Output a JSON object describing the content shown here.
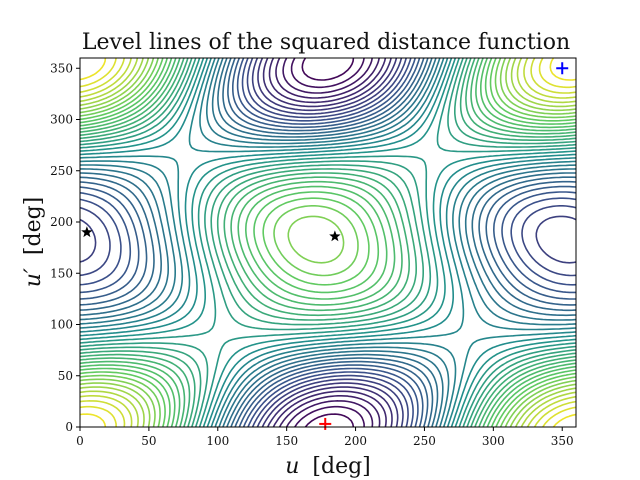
{
  "chart_data": {
    "type": "contour",
    "title": "Level lines of the squared distance function",
    "xlabel": {
      "symbol": "u",
      "unit": "[deg]"
    },
    "ylabel": {
      "symbol": "u′",
      "unit": "[deg]"
    },
    "xlim": [
      0,
      360
    ],
    "ylim": [
      0,
      360
    ],
    "xticks": [
      0,
      50,
      100,
      150,
      200,
      250,
      300,
      350
    ],
    "yticks": [
      0,
      50,
      100,
      150,
      200,
      250,
      300,
      350
    ],
    "grid": false,
    "colormap": [
      "#440154",
      "#3b528b",
      "#21908c",
      "#5dc963",
      "#fde725"
    ],
    "contour_levels": 40,
    "maxima": [
      {
        "x": 178,
        "y": 3,
        "color": "#ff0000",
        "marker": "plus"
      }
    ],
    "minima": [
      {
        "x": 350,
        "y": 350,
        "color": "#0000ff",
        "marker": "plus"
      }
    ],
    "saddles": [
      {
        "x": 5,
        "y": 190,
        "color": "#000000",
        "marker": "star"
      },
      {
        "x": 185,
        "y": 186,
        "color": "#000000",
        "marker": "star"
      }
    ]
  }
}
